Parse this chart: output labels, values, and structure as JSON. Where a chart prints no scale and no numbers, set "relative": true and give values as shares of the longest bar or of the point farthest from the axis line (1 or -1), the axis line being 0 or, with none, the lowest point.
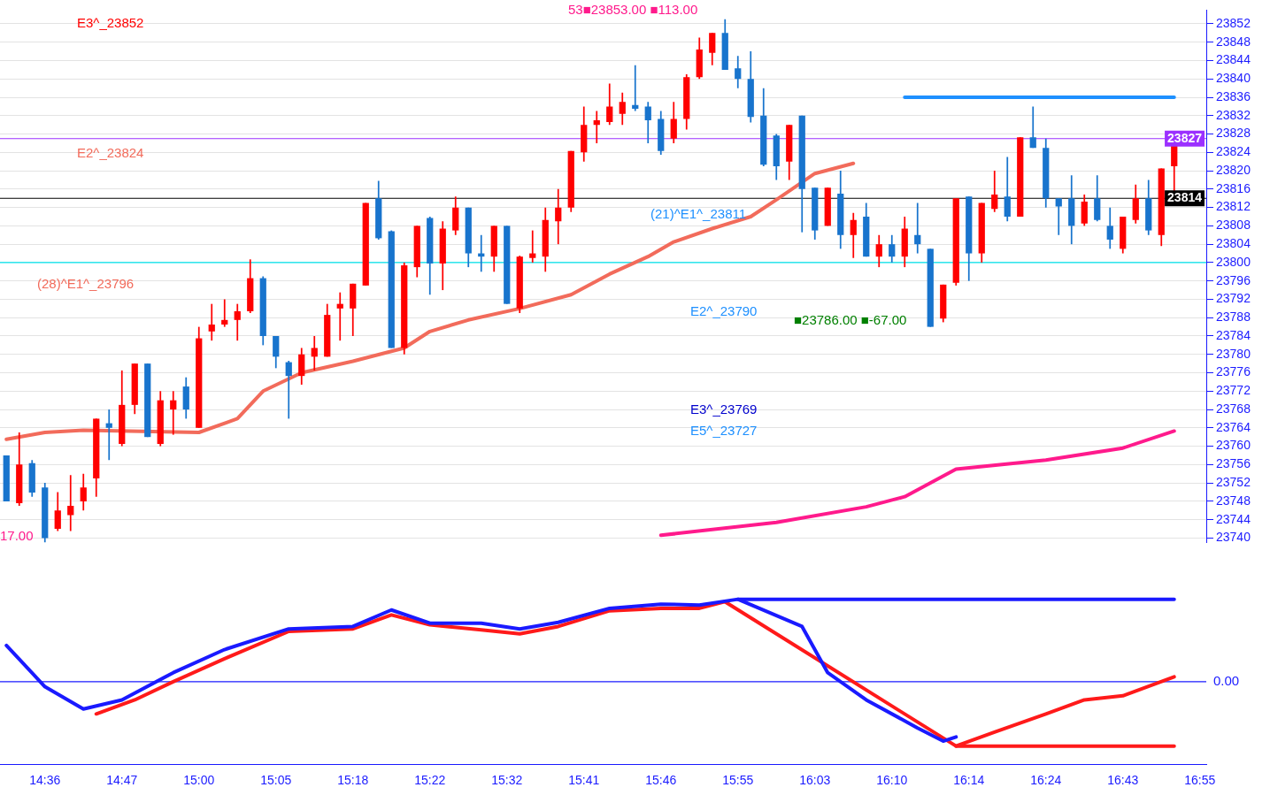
{
  "chart_data": [
    {
      "type": "candlestick",
      "categories": [
        null,
        null,
        null,
        null,
        null,
        null,
        null,
        null,
        null,
        null,
        null,
        null,
        null,
        null,
        null,
        null,
        null,
        null,
        null,
        null,
        null,
        null,
        null,
        null,
        null,
        null,
        null,
        null,
        null,
        null,
        null,
        null,
        null,
        null,
        null,
        null,
        null,
        null,
        null,
        null,
        null,
        null,
        null,
        null,
        null,
        null,
        null,
        null,
        null,
        null,
        null,
        null,
        null,
        null,
        null,
        null,
        null,
        null,
        null,
        null,
        null,
        null,
        null,
        null,
        null,
        null,
        null,
        null,
        null,
        null,
        null,
        null,
        null,
        null,
        null,
        null,
        null,
        null,
        null,
        null,
        null,
        null,
        null,
        null,
        null,
        null,
        null,
        null,
        null,
        null,
        null,
        null,
        null,
        null
      ],
      "ohlc": [
        [
          23758,
          23758,
          23748,
          23748
        ],
        [
          23747.6,
          23763,
          23747,
          23756
        ],
        [
          23756.3,
          23757,
          23749,
          23749.9
        ],
        [
          23751,
          23752,
          23739,
          23740
        ],
        [
          23742,
          23750,
          23741.5,
          23746
        ],
        [
          23745,
          23753.7,
          23741.5,
          23747
        ],
        [
          23748,
          23754,
          23746,
          23751
        ],
        [
          23753,
          23766,
          23749,
          23766
        ],
        [
          23765,
          23768,
          23757,
          23764
        ],
        [
          23760.5,
          23776.5,
          23760,
          23769
        ],
        [
          23769,
          23778,
          23767,
          23778
        ],
        [
          23778,
          23778,
          23762,
          23762
        ],
        [
          23760.5,
          23772,
          23760,
          23770
        ],
        [
          23768,
          23772,
          23762.5,
          23770
        ],
        [
          23773,
          23775,
          23766,
          23768
        ],
        [
          23764,
          23786,
          23764,
          23783.5
        ],
        [
          23785,
          23791,
          23783,
          23786.5
        ],
        [
          23786.5,
          23792,
          23786,
          23787.5
        ],
        [
          23787.5,
          23791,
          23783,
          23789.4
        ],
        [
          23789.4,
          23800.7,
          23789,
          23796.6
        ],
        [
          23796.6,
          23797,
          23782,
          23784
        ],
        [
          23784,
          23784,
          23777,
          23779.5
        ],
        [
          23778.3,
          23778.6,
          23766,
          23775.3
        ],
        [
          23775.3,
          23781.4,
          23773.4,
          23780
        ],
        [
          23779.5,
          23784,
          23776.5,
          23781.4
        ],
        [
          23779.5,
          23791,
          23779.5,
          23788.6
        ],
        [
          23790,
          23793.5,
          23783,
          23791
        ],
        [
          23790,
          23795.4,
          23784,
          23795.4
        ],
        [
          23795,
          23813,
          23795,
          23813
        ],
        [
          23814,
          23817.8,
          23805,
          23805.3
        ],
        [
          23806.8,
          23807,
          23781.4,
          23781.4
        ],
        [
          23781.4,
          23800,
          23780,
          23799.4
        ],
        [
          23799,
          23808,
          23796.8,
          23808
        ],
        [
          23809.7,
          23810,
          23793,
          23799.8
        ],
        [
          23799.8,
          23809,
          23794,
          23807.4
        ],
        [
          23807,
          23814.4,
          23806,
          23812
        ],
        [
          23812,
          23812,
          23799,
          23802
        ],
        [
          23802,
          23806,
          23798,
          23801.3
        ],
        [
          23801.3,
          23808,
          23798,
          23808
        ],
        [
          23808,
          23808,
          23791,
          23791
        ],
        [
          23790,
          23801.5,
          23789,
          23801.3
        ],
        [
          23801,
          23807,
          23800,
          23802
        ],
        [
          23801.3,
          23812,
          23798,
          23809.3
        ],
        [
          23809,
          23816,
          23804,
          23812
        ],
        [
          23812,
          23824.3,
          23811,
          23824.3
        ],
        [
          23824,
          23834,
          23822,
          23830
        ],
        [
          23830,
          23833,
          23826,
          23831
        ],
        [
          23830.6,
          23839,
          23830,
          23834
        ],
        [
          23832.4,
          23837,
          23830,
          23835
        ],
        [
          23834.3,
          23843,
          23833,
          23833.5
        ],
        [
          23834,
          23835,
          23826,
          23831
        ],
        [
          23831.3,
          23833,
          23823.5,
          23824.3
        ],
        [
          23827,
          23835,
          23826,
          23831.3
        ],
        [
          23831.3,
          23841,
          23829,
          23840.4
        ],
        [
          23840.4,
          23849,
          23840,
          23846.4
        ],
        [
          23845.7,
          23850,
          23843,
          23850
        ],
        [
          23850,
          23853,
          23842,
          23842
        ],
        [
          23842.3,
          23845,
          23838,
          23840
        ],
        [
          23840,
          23846,
          23830.5,
          23831.7
        ],
        [
          23832,
          23838,
          23821,
          23821.3
        ],
        [
          23827.7,
          23828,
          23818,
          23821
        ],
        [
          23822,
          23830,
          23818,
          23830
        ],
        [
          23832,
          23832,
          23806.6,
          23816
        ],
        [
          23816.3,
          23816.3,
          23805,
          23807
        ],
        [
          23808,
          23816.3,
          23808,
          23816.3
        ],
        [
          23815,
          23820,
          23803,
          23806
        ],
        [
          23806,
          23810.8,
          23801,
          23809.3
        ],
        [
          23810,
          23813,
          23801.3,
          23801.3
        ],
        [
          23801.3,
          23806,
          23799,
          23804
        ],
        [
          23804,
          23806,
          23800,
          23801.3
        ],
        [
          23801.3,
          23810,
          23799,
          23807.4
        ],
        [
          23806,
          23813,
          23802,
          23804
        ],
        [
          23803,
          23803,
          23786,
          23786
        ],
        [
          23787.8,
          23795.2,
          23787,
          23795.2
        ],
        [
          23795.6,
          23814,
          23795,
          23814
        ],
        [
          23814.4,
          23814.4,
          23796,
          23802
        ],
        [
          23802,
          23813,
          23800,
          23813
        ],
        [
          23811.7,
          23820,
          23811,
          23814.8
        ],
        [
          23814.4,
          23823,
          23809,
          23810
        ],
        [
          23810,
          23827.3,
          23810,
          23827.3
        ],
        [
          23827.3,
          23834,
          23825,
          23825
        ],
        [
          23825,
          23827,
          23812,
          23814
        ],
        [
          23814,
          23814,
          23806,
          23812.2
        ],
        [
          23814,
          23819,
          23804,
          23808
        ],
        [
          23808.5,
          23814.8,
          23808,
          23813.3
        ],
        [
          23814,
          23819,
          23809,
          23809.3
        ],
        [
          23808,
          23812,
          23803,
          23805
        ],
        [
          23803,
          23810,
          23802,
          23810
        ],
        [
          23809.3,
          23817,
          23808.5,
          23814
        ],
        [
          23814,
          23818,
          23806,
          23807
        ],
        [
          23806,
          23820.5,
          23803.6,
          23820.5
        ],
        [
          23821,
          23827,
          23815.6,
          23826.6
        ],
        null,
        null
      ],
      "colors": [
        "#1874cd",
        "#ff0000",
        "#1874cd",
        "#1874cd",
        "#ff0000",
        "#ff0000",
        "#ff0000",
        "#ff0000",
        "#1874cd",
        "#ff0000",
        "#ff0000",
        "#1874cd",
        "#ff0000",
        "#ff0000",
        "#1874cd",
        "#ff0000",
        "#ff0000",
        "#ff0000",
        "#ff0000",
        "#ff0000",
        "#1874cd",
        "#1874cd",
        "#1874cd",
        "#ff0000",
        "#ff0000",
        "#ff0000",
        "#ff0000",
        "#ff0000",
        "#ff0000",
        "#1874cd",
        "#1874cd",
        "#ff0000",
        "#ff0000",
        "#1874cd",
        "#ff0000",
        "#ff0000",
        "#1874cd",
        "#1874cd",
        "#ff0000",
        "#1874cd",
        "#ff0000",
        "#ff0000",
        "#ff0000",
        "#ff0000",
        "#ff0000",
        "#ff0000",
        "#ff0000",
        "#ff0000",
        "#ff0000",
        "#1874cd",
        "#1874cd",
        "#1874cd",
        "#ff0000",
        "#ff0000",
        "#ff0000",
        "#ff0000",
        "#1874cd",
        "#1874cd",
        "#1874cd",
        "#1874cd",
        "#1874cd",
        "#ff0000",
        "#1874cd",
        "#1874cd",
        "#ff0000",
        "#1874cd",
        "#ff0000",
        "#1874cd",
        "#ff0000",
        "#1874cd",
        "#ff0000",
        "#1874cd",
        "#1874cd",
        "#ff0000",
        "#ff0000",
        "#1874cd",
        "#ff0000",
        "#ff0000",
        "#1874cd",
        "#ff0000",
        "#1874cd",
        "#1874cd",
        "#1874cd",
        "#1874cd",
        "#ff0000",
        "#1874cd",
        "#1874cd",
        "#ff0000",
        "#ff0000",
        "#1874cd",
        "#ff0000",
        "#ff0000",
        null,
        null
      ],
      "series": [
        {
          "type": "line",
          "color": "#f26b5b",
          "values": [
            23761.5,
            null,
            null,
            23763,
            null,
            null,
            23763.5,
            null,
            null,
            null,
            null,
            null,
            null,
            null,
            null,
            23763,
            null,
            null,
            23766,
            null,
            23772,
            null,
            null,
            23776,
            null,
            null,
            null,
            23778.5,
            null,
            null,
            null,
            23781.4,
            null,
            23785,
            null,
            null,
            23787.5,
            null,
            null,
            null,
            23790,
            null,
            null,
            null,
            23793,
            null,
            null,
            23797.5,
            null,
            null,
            23801.3,
            null,
            23804.5,
            null,
            null,
            23807.4,
            null,
            null,
            23810,
            null,
            23813.7,
            null,
            null,
            23819.4,
            null,
            null,
            23821.6,
            null,
            null,
            null,
            null,
            null,
            null,
            null,
            null,
            null,
            null,
            null,
            null,
            null,
            null,
            null,
            null,
            null,
            null,
            null,
            null,
            null,
            null,
            null,
            null,
            null,
            null,
            null
          ]
        },
        {
          "type": "line",
          "color": "#ff1a8c",
          "values": [
            null,
            null,
            null,
            null,
            null,
            null,
            null,
            null,
            null,
            null,
            null,
            null,
            null,
            null,
            null,
            null,
            null,
            null,
            null,
            null,
            null,
            null,
            null,
            null,
            null,
            null,
            null,
            null,
            null,
            null,
            null,
            null,
            null,
            null,
            null,
            null,
            null,
            null,
            null,
            null,
            null,
            null,
            null,
            null,
            null,
            null,
            null,
            null,
            null,
            null,
            null,
            23740.6,
            null,
            null,
            null,
            null,
            null,
            null,
            null,
            null,
            23743.4,
            null,
            null,
            null,
            null,
            null,
            null,
            23746.8,
            null,
            null,
            23749,
            null,
            null,
            null,
            23755,
            null,
            null,
            null,
            null,
            null,
            null,
            23757,
            null,
            null,
            null,
            null,
            null,
            23759.6,
            null,
            null,
            null,
            23763.3,
            null,
            null
          ]
        },
        {
          "type": "line",
          "color": "#1e90ff",
          "values": [
            null,
            null,
            null,
            null,
            null,
            null,
            null,
            null,
            null,
            null,
            null,
            null,
            null,
            null,
            null,
            null,
            null,
            null,
            null,
            null,
            null,
            null,
            null,
            null,
            null,
            null,
            null,
            null,
            null,
            null,
            null,
            null,
            null,
            null,
            null,
            null,
            null,
            null,
            null,
            null,
            null,
            null,
            null,
            null,
            null,
            null,
            null,
            null,
            null,
            null,
            null,
            null,
            null,
            null,
            null,
            null,
            null,
            null,
            null,
            null,
            null,
            null,
            null,
            null,
            null,
            null,
            null,
            null,
            null,
            null,
            23836,
            null,
            null,
            null,
            null,
            null,
            null,
            null,
            null,
            null,
            null,
            null,
            null,
            null,
            null,
            null,
            null,
            null,
            null,
            null,
            null,
            23836,
            null,
            null
          ]
        }
      ],
      "ylim": [
        23739,
        23855
      ],
      "yticks": [
        23740,
        23744,
        23748,
        23752,
        23756,
        23760,
        23764,
        23768,
        23772,
        23776,
        23780,
        23784,
        23788,
        23792,
        23796,
        23800,
        23804,
        23808,
        23812,
        23816,
        23820,
        23824,
        23828,
        23832,
        23836,
        23840,
        23844,
        23848,
        23852
      ],
      "ref_lines": [
        {
          "axis": "y",
          "value": 23800,
          "color": "#00e5ee"
        },
        {
          "axis": "y",
          "value": 23827,
          "label": "23827",
          "color": "#9b30ff"
        },
        {
          "axis": "y",
          "value": 23814,
          "label": "23814",
          "color": "#000000"
        }
      ],
      "annotations": [
        "E3^_23852",
        "E2^_23824",
        "(28)^E1^_23796",
        "53■23853.00 ■113.00",
        "(21)^E1^_23811",
        "E2^_23790",
        "■23786.00 ■-67.00",
        "E3^_23769",
        "E5^_23727",
        "17.00"
      ],
      "grid": "y",
      "legend": false,
      "marker": "none",
      "tick_labels": "y"
    },
    {
      "type": "line",
      "relative": true,
      "categories": [
        null,
        null,
        null,
        "14:36",
        null,
        null,
        null,
        null,
        null,
        "14:47",
        null,
        null,
        null,
        null,
        null,
        "15:00",
        null,
        null,
        null,
        null,
        null,
        "15:05",
        null,
        null,
        null,
        null,
        null,
        "15:18",
        null,
        null,
        null,
        null,
        null,
        "15:22",
        null,
        null,
        null,
        null,
        null,
        "15:32",
        null,
        null,
        null,
        null,
        null,
        "15:41",
        null,
        null,
        null,
        null,
        null,
        "15:46",
        null,
        null,
        null,
        null,
        null,
        "15:55",
        null,
        null,
        null,
        null,
        null,
        "16:03",
        null,
        null,
        null,
        null,
        null,
        "16:10",
        null,
        null,
        null,
        null,
        null,
        "16:14",
        null,
        null,
        null,
        null,
        null,
        "16:24",
        null,
        null,
        null,
        null,
        null,
        "16:43",
        null,
        null,
        null,
        null,
        null,
        "16:55"
      ],
      "series": [
        {
          "color": "#1a1aff",
          "values": [
            0.44,
            null,
            null,
            -0.06,
            null,
            null,
            -0.33,
            null,
            null,
            -0.22,
            null,
            null,
            null,
            0.11,
            null,
            null,
            null,
            0.39,
            null,
            null,
            null,
            null,
            0.64,
            null,
            null,
            null,
            null,
            0.67,
            null,
            null,
            0.87,
            null,
            null,
            0.71,
            null,
            null,
            null,
            0.71,
            null,
            null,
            0.64,
            null,
            null,
            0.72,
            null,
            null,
            null,
            0.89,
            null,
            null,
            null,
            0.94,
            null,
            null,
            0.93,
            null,
            null,
            1,
            null,
            null,
            null,
            null,
            0.67,
            null,
            0.11,
            null,
            null,
            -0.22,
            null,
            null,
            null,
            -0.56,
            null,
            -0.72,
            -0.67,
            null,
            null,
            null,
            null,
            null,
            null,
            null,
            null,
            null,
            null,
            null,
            null,
            null,
            null,
            null,
            null,
            null,
            null,
            null
          ]
        },
        {
          "color": "#ff1a1a",
          "values": [
            null,
            null,
            null,
            null,
            null,
            null,
            null,
            -0.39,
            null,
            null,
            -0.22,
            null,
            null,
            0,
            null,
            null,
            null,
            0.28,
            null,
            null,
            null,
            null,
            0.61,
            null,
            null,
            null,
            null,
            0.64,
            null,
            null,
            0.81,
            null,
            null,
            0.69,
            null,
            null,
            null,
            0.63,
            null,
            null,
            0.58,
            null,
            null,
            0.67,
            null,
            null,
            null,
            0.86,
            null,
            null,
            null,
            0.89,
            null,
            null,
            0.89,
            null,
            0.97,
            null,
            null,
            null,
            null,
            null,
            null,
            null,
            null,
            null,
            null,
            null,
            null,
            null,
            null,
            null,
            null,
            null,
            -0.78,
            null,
            null,
            -0.61,
            null,
            null,
            null,
            -0.39,
            null,
            null,
            -0.22,
            null,
            null,
            -0.17,
            null,
            null,
            null,
            0.06,
            null,
            null
          ]
        },
        {
          "color": "#1a1aff",
          "values": [
            null,
            null,
            null,
            null,
            null,
            null,
            null,
            null,
            null,
            null,
            null,
            null,
            null,
            null,
            null,
            null,
            null,
            null,
            null,
            null,
            null,
            null,
            null,
            null,
            null,
            null,
            null,
            null,
            null,
            null,
            null,
            null,
            null,
            null,
            null,
            null,
            null,
            null,
            null,
            null,
            null,
            null,
            null,
            null,
            null,
            null,
            null,
            null,
            null,
            null,
            null,
            null,
            null,
            null,
            null,
            null,
            null,
            1,
            null,
            null,
            null,
            null,
            null,
            null,
            null,
            null,
            null,
            null,
            null,
            null,
            null,
            null,
            null,
            null,
            null,
            null,
            null,
            null,
            null,
            null,
            null,
            null,
            null,
            null,
            null,
            null,
            null,
            null,
            null,
            null,
            null,
            1,
            null,
            null
          ]
        },
        {
          "color": "#ff1a1a",
          "values": [
            null,
            null,
            null,
            null,
            null,
            null,
            null,
            null,
            null,
            null,
            null,
            null,
            null,
            null,
            null,
            null,
            null,
            null,
            null,
            null,
            null,
            null,
            null,
            null,
            null,
            null,
            null,
            null,
            null,
            null,
            null,
            null,
            null,
            null,
            null,
            null,
            null,
            null,
            null,
            null,
            null,
            null,
            null,
            null,
            null,
            null,
            null,
            null,
            null,
            null,
            null,
            null,
            null,
            null,
            null,
            null,
            null,
            null,
            null,
            null,
            null,
            null,
            null,
            null,
            null,
            null,
            null,
            null,
            null,
            null,
            null,
            null,
            null,
            null,
            -0.78,
            null,
            null,
            null,
            null,
            null,
            null,
            null,
            null,
            null,
            null,
            null,
            null,
            null,
            null,
            null,
            null,
            -0.78,
            null,
            null
          ]
        }
      ],
      "ref_lines": [
        {
          "axis": "y",
          "value": 0,
          "color": "#1a1aff"
        }
      ],
      "annotations": [
        "0.00"
      ],
      "legend": false,
      "marker": "none",
      "tick_labels": "x"
    }
  ]
}
